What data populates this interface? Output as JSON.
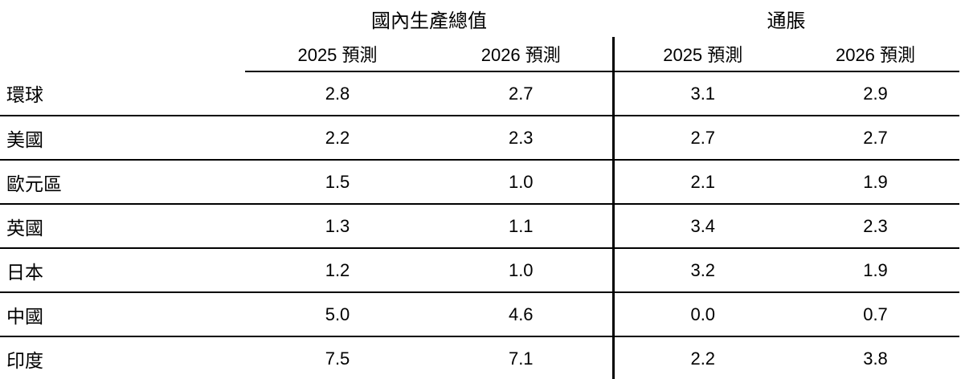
{
  "colors": {
    "background": "#ffffff",
    "text": "#000000",
    "rule": "#000000"
  },
  "chart_data": {
    "type": "table",
    "column_groups": [
      {
        "id": "gdp",
        "label": "國內生產總值",
        "columns": [
          "2025 預測",
          "2026 預測"
        ]
      },
      {
        "id": "inflation",
        "label": "通脹",
        "columns": [
          "2025 預測",
          "2026 預測"
        ]
      }
    ],
    "sub_headers": [
      "2025 預測",
      "2026 預測",
      "2025 預測",
      "2026 預測"
    ],
    "rows": [
      {
        "label": "環球",
        "values": [
          "2.8",
          "2.7",
          "3.1",
          "2.9"
        ]
      },
      {
        "label": "美國",
        "values": [
          "2.2",
          "2.3",
          "2.7",
          "2.7"
        ]
      },
      {
        "label": "歐元區",
        "values": [
          "1.5",
          "1.0",
          "2.1",
          "1.9"
        ]
      },
      {
        "label": "英國",
        "values": [
          "1.3",
          "1.1",
          "3.4",
          "2.3"
        ]
      },
      {
        "label": "日本",
        "values": [
          "1.2",
          "1.0",
          "3.2",
          "1.9"
        ]
      },
      {
        "label": "中國",
        "values": [
          "5.0",
          "4.6",
          "0.0",
          "0.7"
        ]
      },
      {
        "label": "印度",
        "values": [
          "7.5",
          "7.1",
          "2.2",
          "3.8"
        ]
      }
    ],
    "layout": {
      "group_divider": "vertical line between GDP and inflation column groups",
      "row_rules": "thin horizontal rule under every data row",
      "bottom_rule": "thick horizontal rule closing the table"
    }
  }
}
